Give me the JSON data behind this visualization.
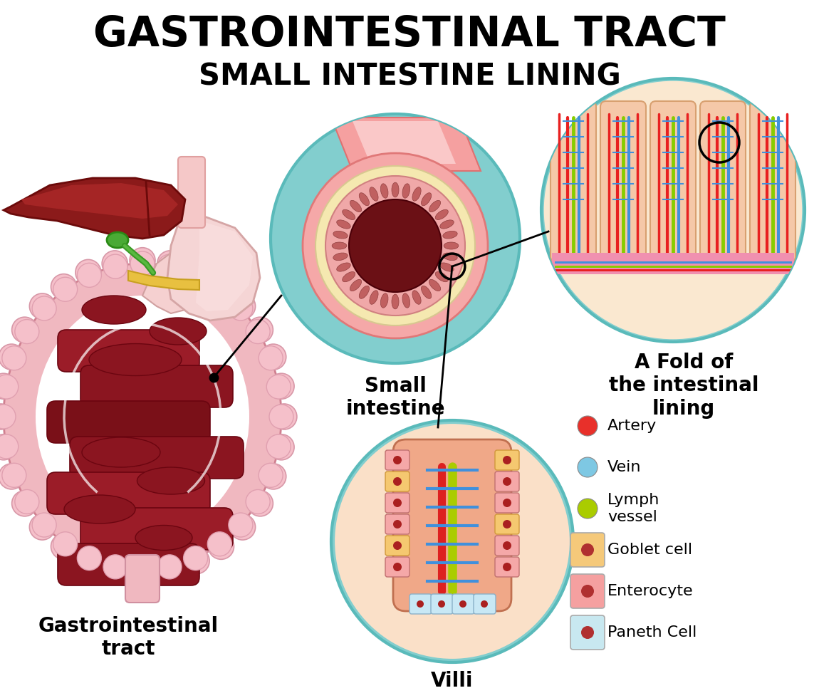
{
  "title1": "GASTROINTESTINAL TRACT",
  "title2": "SMALL INTESTINE LINING",
  "label_gi": "Gastrointestinal\ntract",
  "label_small": "Small\nintestine",
  "label_fold": "A Fold of\nthe intestinal\nlining",
  "label_villi": "Villi",
  "legend_items": [
    {
      "color": "#e8302a",
      "label": "Artery",
      "shape": "circle"
    },
    {
      "color": "#7ec8e3",
      "label": "Vein",
      "shape": "circle"
    },
    {
      "color": "#aacc00",
      "label": "Lymph\nvessel",
      "shape": "circle"
    },
    {
      "color": "#f5c97a",
      "label": "Goblet cell",
      "shape": "square",
      "dot": "#b03030"
    },
    {
      "color": "#f5a0a0",
      "label": "Enterocyte",
      "shape": "square",
      "dot": "#b03030"
    },
    {
      "color": "#c8e8f0",
      "label": "Paneth Cell",
      "shape": "square",
      "dot": "#b03030"
    }
  ],
  "bg_color": "#ffffff",
  "circle_bg": "#82cece",
  "title1_size": 42,
  "title2_size": 30,
  "label_size": 20
}
